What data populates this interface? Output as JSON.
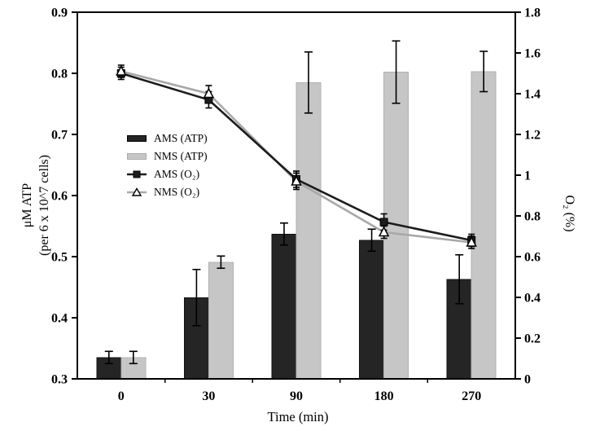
{
  "figure": {
    "background": "#ffffff"
  },
  "chart_data": {
    "type": "bar+line (dual axis)",
    "categories": [
      "0",
      "30",
      "90",
      "180",
      "270"
    ],
    "xlabel": "Time (min)",
    "left_axis": {
      "label_line1": "μM ATP",
      "label_line2": "(per 6 x 10^7 cells)",
      "min": 0.3,
      "max": 0.9,
      "ticks": [
        "0.3",
        "0.4",
        "0.5",
        "0.6",
        "0.7",
        "0.8",
        "0.9"
      ]
    },
    "right_axis": {
      "label": "O₂ (%)",
      "min": 0,
      "max": 1.8,
      "ticks": [
        "0",
        "0.2",
        "0.4",
        "0.6",
        "0.8",
        "1",
        "1.2",
        "1.4",
        "1.6",
        "1.8"
      ]
    },
    "grid": false,
    "legend_position": "inside-left-middle",
    "series": [
      {
        "name": "AMS (ATP)",
        "kind": "bar",
        "axis": "left",
        "color": "#252525",
        "border": "#111111",
        "values": [
          0.335,
          0.433,
          0.537,
          0.527,
          0.463
        ],
        "errors": [
          0.01,
          0.046,
          0.018,
          0.018,
          0.04
        ]
      },
      {
        "name": "NMS (ATP)",
        "kind": "bar",
        "axis": "left",
        "color": "#c6c6c6",
        "border": "#b0b0b0",
        "values": [
          0.335,
          0.491,
          0.785,
          0.802,
          0.803
        ],
        "errors": [
          0.01,
          0.01,
          0.05,
          0.051,
          0.033
        ]
      },
      {
        "name": "AMS (O₂)",
        "kind": "line",
        "axis": "right",
        "color": "#1c1c1c",
        "marker": "filled-square",
        "values": [
          1.5,
          1.37,
          0.98,
          0.77,
          0.68
        ],
        "errors": [
          0.03,
          0.04,
          0.04,
          0.04,
          0.03
        ]
      },
      {
        "name": "NMS (O₂)",
        "kind": "line",
        "axis": "right",
        "color": "#a8a8a8",
        "marker": "open-triangle",
        "values": [
          1.51,
          1.4,
          0.97,
          0.72,
          0.67
        ],
        "errors": [
          0.03,
          0.04,
          0.04,
          0.03,
          0.03
        ]
      }
    ],
    "error_color": "#000000",
    "frame_color": "#000000"
  }
}
